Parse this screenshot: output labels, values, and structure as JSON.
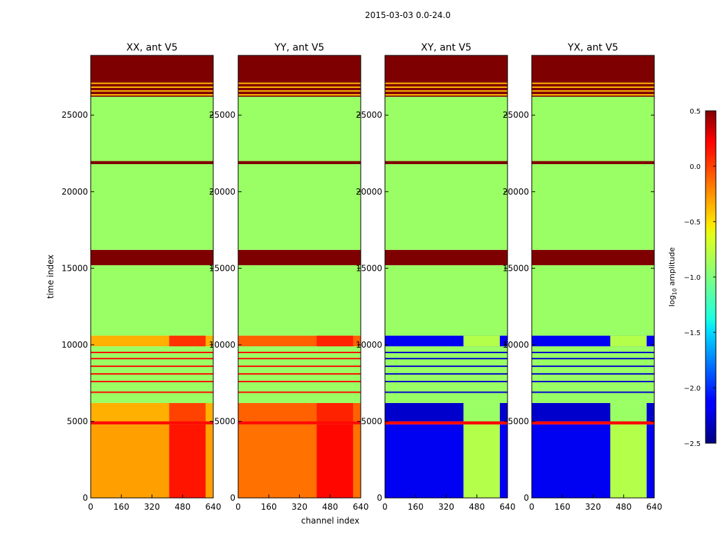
{
  "figure_title": "2015-03-03 0.0-24.0",
  "colorbar": {
    "label_prefix": "log",
    "label_sub": "10",
    "label_suffix": " amplitude",
    "range": [
      -2.5,
      0.5
    ],
    "ticks": [
      "0.5",
      "0.0",
      "−0.5",
      "−1.0",
      "−1.5",
      "−2.0",
      "−2.5"
    ],
    "tick_values": [
      0.5,
      0.0,
      -0.5,
      -1.0,
      -1.5,
      -2.0,
      -2.5
    ]
  },
  "chart_data": [
    {
      "type": "heatmap",
      "title": "XX, ant V5",
      "xlabel": "",
      "ylabel": "time index",
      "xlim": [
        0,
        640
      ],
      "ylim": [
        0,
        28900
      ],
      "xticks": [
        "0",
        "160",
        "320",
        "480",
        "640"
      ],
      "xtick_values": [
        0,
        160,
        320,
        480,
        640
      ],
      "yticks": [
        "0",
        "5000",
        "10000",
        "15000",
        "20000",
        "25000"
      ],
      "ytick_values": [
        0,
        5000,
        10000,
        15000,
        20000,
        25000
      ],
      "colormap": "jet",
      "value_range": [
        -2.5,
        0.5
      ],
      "rows": [
        {
          "y0": 0,
          "y1": 4800,
          "base": -0.3,
          "band": {
            "x0": 410,
            "x1": 600,
            "value": 0.15
          }
        },
        {
          "y0": 4800,
          "y1": 5000,
          "base": 0.2
        },
        {
          "y0": 5000,
          "y1": 6200,
          "base": -0.35,
          "band": {
            "x0": 410,
            "x1": 600,
            "value": 0.0
          }
        },
        {
          "y0": 6200,
          "y1": 9900,
          "base": -0.9,
          "lines": [
            6900,
            7600,
            8100,
            8600,
            9100,
            9500
          ],
          "line_value": 0.2
        },
        {
          "y0": 9900,
          "y1": 10600,
          "base": -0.35,
          "band": {
            "x0": 410,
            "x1": 600,
            "value": 0.05
          }
        },
        {
          "y0": 10600,
          "y1": 15200,
          "base": -0.9
        },
        {
          "y0": 15200,
          "y1": 16200,
          "base": 0.5
        },
        {
          "y0": 16200,
          "y1": 21800,
          "base": -0.9
        },
        {
          "y0": 21800,
          "y1": 22000,
          "base": 0.5
        },
        {
          "y0": 22000,
          "y1": 26200,
          "base": -0.9
        },
        {
          "y0": 26200,
          "y1": 27200,
          "base": 0.5,
          "stripes": -0.4
        },
        {
          "y0": 27200,
          "y1": 28900,
          "base": 0.5
        }
      ]
    },
    {
      "type": "heatmap",
      "title": "YY, ant V5",
      "xlabel": "channel index",
      "ylabel": "",
      "xlim": [
        0,
        640
      ],
      "ylim": [
        0,
        28900
      ],
      "xticks": [
        "0",
        "160",
        "320",
        "480",
        "640"
      ],
      "xtick_values": [
        0,
        160,
        320,
        480,
        640
      ],
      "yticks": [
        "0",
        "5000",
        "10000",
        "15000",
        "20000",
        "25000"
      ],
      "ytick_values": [
        0,
        5000,
        10000,
        15000,
        20000,
        25000
      ],
      "colormap": "jet",
      "value_range": [
        -2.5,
        0.5
      ],
      "rows": [
        {
          "y0": 0,
          "y1": 4800,
          "base": -0.15,
          "band": {
            "x0": 410,
            "x1": 600,
            "value": 0.2
          }
        },
        {
          "y0": 4800,
          "y1": 5000,
          "base": 0.2
        },
        {
          "y0": 5000,
          "y1": 6200,
          "base": -0.1,
          "band": {
            "x0": 410,
            "x1": 600,
            "value": 0.1
          }
        },
        {
          "y0": 6200,
          "y1": 9900,
          "base": -0.9,
          "lines": [
            6900,
            7600,
            8100,
            8600,
            9100,
            9500
          ],
          "line_value": 0.2
        },
        {
          "y0": 9900,
          "y1": 10600,
          "base": -0.1,
          "band": {
            "x0": 410,
            "x1": 600,
            "value": 0.1
          }
        },
        {
          "y0": 10600,
          "y1": 15200,
          "base": -0.9
        },
        {
          "y0": 15200,
          "y1": 16200,
          "base": 0.5
        },
        {
          "y0": 16200,
          "y1": 21800,
          "base": -0.9
        },
        {
          "y0": 21800,
          "y1": 22000,
          "base": 0.5
        },
        {
          "y0": 22000,
          "y1": 26200,
          "base": -0.9
        },
        {
          "y0": 26200,
          "y1": 27200,
          "base": 0.5,
          "stripes": -0.4
        },
        {
          "y0": 27200,
          "y1": 28900,
          "base": 0.5
        }
      ]
    },
    {
      "type": "heatmap",
      "title": "XY, ant V5",
      "xlabel": "",
      "ylabel": "",
      "xlim": [
        0,
        640
      ],
      "ylim": [
        0,
        28900
      ],
      "xticks": [
        "0",
        "160",
        "320",
        "480",
        "640"
      ],
      "xtick_values": [
        0,
        160,
        320,
        480,
        640
      ],
      "yticks": [
        "0",
        "5000",
        "10000",
        "15000",
        "20000",
        "25000"
      ],
      "ytick_values": [
        0,
        5000,
        10000,
        15000,
        20000,
        25000
      ],
      "colormap": "jet",
      "value_range": [
        -2.5,
        0.5
      ],
      "rows": [
        {
          "y0": 0,
          "y1": 4800,
          "base": -2.2,
          "band": {
            "x0": 410,
            "x1": 600,
            "value": -0.8
          }
        },
        {
          "y0": 4800,
          "y1": 5000,
          "base": 0.2
        },
        {
          "y0": 5000,
          "y1": 6200,
          "base": -2.3,
          "band": {
            "x0": 410,
            "x1": 600,
            "value": -0.9
          }
        },
        {
          "y0": 6200,
          "y1": 9900,
          "base": -0.9,
          "lines": [
            6900,
            7600,
            8100,
            8600,
            9100,
            9500
          ],
          "line_value": -2.3
        },
        {
          "y0": 9900,
          "y1": 10600,
          "base": -2.2,
          "band": {
            "x0": 410,
            "x1": 600,
            "value": -0.8
          }
        },
        {
          "y0": 10600,
          "y1": 15200,
          "base": -0.9
        },
        {
          "y0": 15200,
          "y1": 16200,
          "base": 0.5
        },
        {
          "y0": 16200,
          "y1": 21800,
          "base": -0.9
        },
        {
          "y0": 21800,
          "y1": 22000,
          "base": 0.5
        },
        {
          "y0": 22000,
          "y1": 26200,
          "base": -0.9
        },
        {
          "y0": 26200,
          "y1": 27200,
          "base": 0.5,
          "stripes": -0.4
        },
        {
          "y0": 27200,
          "y1": 28900,
          "base": 0.5
        }
      ]
    },
    {
      "type": "heatmap",
      "title": "YX, ant V5",
      "xlabel": "",
      "ylabel": "",
      "xlim": [
        0,
        640
      ],
      "ylim": [
        0,
        28900
      ],
      "xticks": [
        "0",
        "160",
        "320",
        "480",
        "640"
      ],
      "xtick_values": [
        0,
        160,
        320,
        480,
        640
      ],
      "yticks": [
        "0",
        "5000",
        "10000",
        "15000",
        "20000",
        "25000"
      ],
      "ytick_values": [
        0,
        5000,
        10000,
        15000,
        20000,
        25000
      ],
      "colormap": "jet",
      "value_range": [
        -2.5,
        0.5
      ],
      "rows": [
        {
          "y0": 0,
          "y1": 4800,
          "base": -2.2,
          "band": {
            "x0": 410,
            "x1": 600,
            "value": -0.8
          }
        },
        {
          "y0": 4800,
          "y1": 5000,
          "base": 0.2
        },
        {
          "y0": 5000,
          "y1": 6200,
          "base": -2.3,
          "band": {
            "x0": 410,
            "x1": 600,
            "value": -0.9
          }
        },
        {
          "y0": 6200,
          "y1": 9900,
          "base": -0.9,
          "lines": [
            6900,
            7600,
            8100,
            8600,
            9100,
            9500
          ],
          "line_value": -2.3
        },
        {
          "y0": 9900,
          "y1": 10600,
          "base": -2.2,
          "band": {
            "x0": 410,
            "x1": 600,
            "value": -0.8
          }
        },
        {
          "y0": 10600,
          "y1": 15200,
          "base": -0.9
        },
        {
          "y0": 15200,
          "y1": 16200,
          "base": 0.5
        },
        {
          "y0": 16200,
          "y1": 21800,
          "base": -0.9
        },
        {
          "y0": 21800,
          "y1": 22000,
          "base": 0.5
        },
        {
          "y0": 22000,
          "y1": 26200,
          "base": -0.9
        },
        {
          "y0": 26200,
          "y1": 27200,
          "base": 0.5,
          "stripes": -0.4
        },
        {
          "y0": 27200,
          "y1": 28900,
          "base": 0.5
        }
      ]
    }
  ]
}
